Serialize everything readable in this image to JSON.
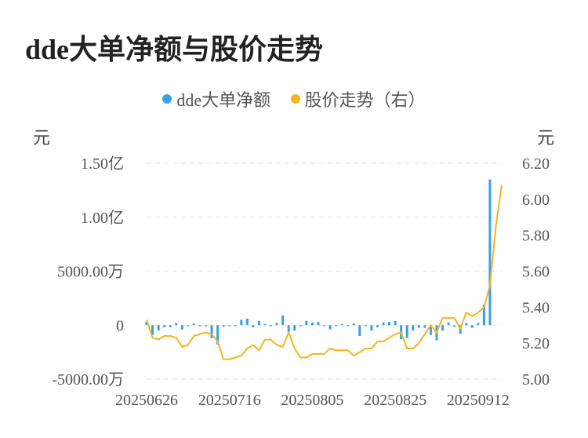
{
  "title": "dde大单净额与股价走势",
  "legend": {
    "bar_label": "dde大单净额",
    "line_label": "股价走势（右）"
  },
  "units": {
    "left": "元",
    "right": "元"
  },
  "colors": {
    "bar": "#3a9ee8",
    "line": "#f2b61b",
    "grid": "#e6e6e6"
  },
  "chart_data": {
    "type": "bar+line",
    "x_tick_labels": [
      "20250626",
      "20250716",
      "20250805",
      "20250825",
      "20250912"
    ],
    "left_axis": {
      "ticks": [
        "1.50亿",
        "1.00亿",
        "5000.00万",
        "0",
        "-5000.00万"
      ],
      "ylim": [
        -50000000,
        150000000
      ]
    },
    "right_axis": {
      "ticks": [
        "6.20",
        "6.00",
        "5.80",
        "5.60",
        "5.40",
        "5.20",
        "5.00"
      ],
      "ylim": [
        5.0,
        6.2
      ]
    },
    "dates": [
      "20250626",
      "20250627",
      "20250630",
      "20250701",
      "20250702",
      "20250703",
      "20250704",
      "20250707",
      "20250708",
      "20250709",
      "20250710",
      "20250711",
      "20250714",
      "20250715",
      "20250716",
      "20250717",
      "20250718",
      "20250721",
      "20250722",
      "20250723",
      "20250724",
      "20250725",
      "20250728",
      "20250729",
      "20250730",
      "20250731",
      "20250801",
      "20250804",
      "20250805",
      "20250806",
      "20250807",
      "20250808",
      "20250811",
      "20250812",
      "20250813",
      "20250814",
      "20250815",
      "20250818",
      "20250819",
      "20250820",
      "20250821",
      "20250822",
      "20250825",
      "20250826",
      "20250827",
      "20250828",
      "20250829",
      "20250901",
      "20250902",
      "20250903",
      "20250904",
      "20250905",
      "20250908",
      "20250909",
      "20250910",
      "20250911",
      "20250912",
      "20250915",
      "20250916",
      "20250917",
      "20250918"
    ],
    "series": [
      {
        "name": "dde大单净额",
        "axis": "left",
        "values": [
          3000000,
          -9000000,
          -5000000,
          -2000000,
          -2000000,
          2000000,
          -4000000,
          -1000000,
          1500000,
          -1000000,
          -1000000,
          -12000000,
          -18000000,
          -1500000,
          -1000000,
          -1000000,
          5000000,
          6000000,
          -2000000,
          4000000,
          1000000,
          -1000000,
          2000000,
          9000000,
          -6000000,
          -5000000,
          -1000000,
          4000000,
          2500000,
          3000000,
          -1000000,
          -4000000,
          -1000000,
          1000000,
          -1000000,
          1500000,
          -10000000,
          -1000000,
          -5000000,
          -2000000,
          2500000,
          3000000,
          4000000,
          -13000000,
          -12000000,
          -5000000,
          -2500000,
          -2500000,
          -9000000,
          -14000000,
          -5000000,
          2500000,
          -1500000,
          -8000000,
          2000000,
          -2500000,
          2000000,
          19000000,
          135000000,
          0,
          0
        ]
      },
      {
        "name": "股价走势（右）",
        "axis": "right",
        "values": [
          5.33,
          5.23,
          5.22,
          5.24,
          5.24,
          5.23,
          5.18,
          5.19,
          5.24,
          5.25,
          5.26,
          5.25,
          5.21,
          5.11,
          5.11,
          5.12,
          5.13,
          5.17,
          5.19,
          5.16,
          5.22,
          5.22,
          5.19,
          5.18,
          5.26,
          5.17,
          5.12,
          5.12,
          5.14,
          5.14,
          5.14,
          5.17,
          5.16,
          5.16,
          5.16,
          5.13,
          5.15,
          5.17,
          5.17,
          5.21,
          5.21,
          5.23,
          5.25,
          5.26,
          5.17,
          5.17,
          5.2,
          5.25,
          5.3,
          5.26,
          5.34,
          5.34,
          5.34,
          5.28,
          5.37,
          5.35,
          5.37,
          5.4,
          5.52,
          5.85,
          6.08
        ]
      }
    ]
  }
}
